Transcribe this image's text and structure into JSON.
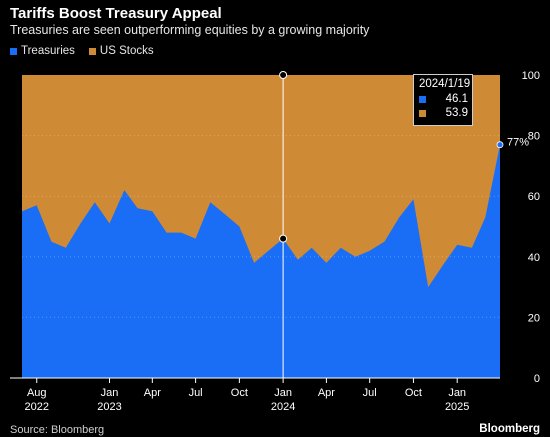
{
  "title": "Tariffs Boost Treasury Appeal",
  "subtitle": "Treasuries are seen outperforming equities by a growing majority",
  "source": "Source: Bloomberg",
  "brand": "Bloomberg",
  "colors": {
    "treasuries": "#1a6ef5",
    "stocks": "#cf8a36",
    "background": "#000000"
  },
  "tooltip": {
    "date": "2024/1/19",
    "treasuries": "46.1",
    "stocks": "53.9"
  },
  "end_label": "77%",
  "chart_data": {
    "type": "area",
    "stacked": true,
    "ylim": [
      0,
      100
    ],
    "yticks": [
      "0",
      "20",
      "40",
      "60",
      "80",
      "100"
    ],
    "xticks": [
      {
        "label": "Aug",
        "year": "2022",
        "x": "2022-08"
      },
      {
        "label": "Jan",
        "year": "2023",
        "x": "2023-01"
      },
      {
        "label": "Apr",
        "year": "",
        "x": "2023-04"
      },
      {
        "label": "Jul",
        "year": "",
        "x": "2023-07"
      },
      {
        "label": "Oct",
        "year": "",
        "x": "2023-10"
      },
      {
        "label": "Jan",
        "year": "2024",
        "x": "2024-01"
      },
      {
        "label": "Apr",
        "year": "",
        "x": "2024-04"
      },
      {
        "label": "Jul",
        "year": "",
        "x": "2024-07"
      },
      {
        "label": "Oct",
        "year": "",
        "x": "2024-10"
      },
      {
        "label": "Jan",
        "year": "2025",
        "x": "2025-01"
      }
    ],
    "x": [
      "2022-07",
      "2022-08",
      "2022-09",
      "2022-10",
      "2022-11",
      "2022-12",
      "2023-01",
      "2023-02",
      "2023-03",
      "2023-04",
      "2023-05",
      "2023-06",
      "2023-07",
      "2023-08",
      "2023-09",
      "2023-10",
      "2023-11",
      "2023-12",
      "2024-01",
      "2024-02",
      "2024-03",
      "2024-04",
      "2024-05",
      "2024-06",
      "2024-07",
      "2024-08",
      "2024-09",
      "2024-10",
      "2024-11",
      "2024-12",
      "2025-01",
      "2025-02",
      "2025-03",
      "2025-04"
    ],
    "series": [
      {
        "name": "Treasuries",
        "values": [
          55,
          57,
          45,
          43,
          51,
          58,
          51,
          62,
          56,
          55,
          48,
          48,
          46,
          58,
          54,
          50,
          38,
          42,
          46,
          39,
          43,
          38,
          43,
          40,
          42,
          45,
          53,
          59,
          30,
          37,
          44,
          43,
          53,
          77
        ]
      },
      {
        "name": "US Stocks",
        "values": [
          45,
          43,
          55,
          57,
          49,
          42,
          49,
          38,
          44,
          45,
          52,
          52,
          54,
          42,
          46,
          50,
          62,
          58,
          54,
          61,
          57,
          62,
          57,
          60,
          58,
          55,
          47,
          41,
          70,
          63,
          56,
          57,
          47,
          23
        ]
      }
    ]
  }
}
